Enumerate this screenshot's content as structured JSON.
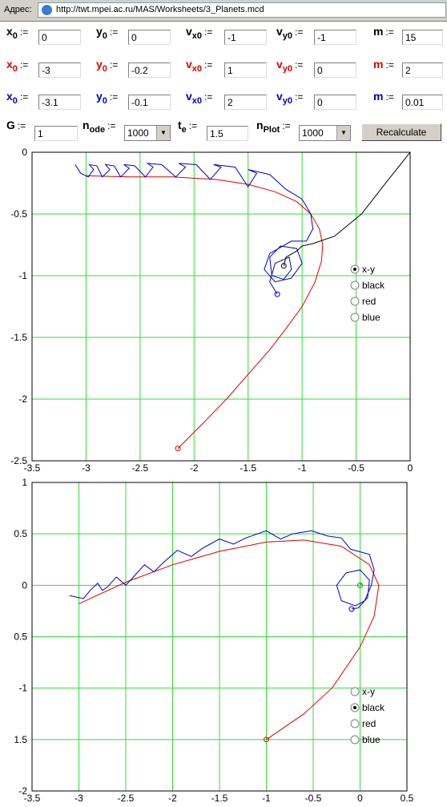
{
  "address_bar": {
    "label": "Адрес:",
    "url": "http://twt.mpei.ac.ru/MAS/Worksheets/3_Planets.mcd"
  },
  "form": {
    "assign": ":=",
    "rows": [
      {
        "color": "#000000",
        "fields": [
          {
            "name": "x",
            "sub": "0",
            "value": "0"
          },
          {
            "name": "y",
            "sub": "0",
            "value": "0"
          },
          {
            "name": "v",
            "sub": "x0",
            "value": "-1"
          },
          {
            "name": "v",
            "sub": "y0",
            "value": "-1"
          },
          {
            "name": "m",
            "value": "15"
          }
        ]
      },
      {
        "color": "#e00000",
        "fields": [
          {
            "name": "x",
            "sub": "0",
            "value": "-3"
          },
          {
            "name": "y",
            "sub": "0",
            "value": "-0.2"
          },
          {
            "name": "v",
            "sub": "x0",
            "value": "1"
          },
          {
            "name": "v",
            "sub": "y0",
            "value": "0"
          },
          {
            "name": "m",
            "value": "2"
          }
        ]
      },
      {
        "color": "#0000c0",
        "fields": [
          {
            "name": "x",
            "sub": "0",
            "value": "-3.1"
          },
          {
            "name": "y",
            "sub": "0",
            "value": "-0.1"
          },
          {
            "name": "v",
            "sub": "x0",
            "value": "2"
          },
          {
            "name": "v",
            "sub": "y0",
            "value": "0"
          },
          {
            "name": "m",
            "value": "0.01"
          }
        ]
      }
    ],
    "settings": [
      {
        "name": "G",
        "value": "1",
        "kind": "input"
      },
      {
        "name": "n",
        "sub": "ode",
        "value": "1000",
        "kind": "select"
      },
      {
        "name": "t",
        "sub": "e",
        "value": "1.5",
        "kind": "input"
      },
      {
        "name": "n",
        "sub": "Plot",
        "value": "1000",
        "kind": "select"
      }
    ],
    "button": "Recalculate"
  },
  "chart_data": [
    {
      "type": "line",
      "grid": true,
      "grid_color": "#33dd33",
      "xlim": [
        -3.5,
        0
      ],
      "xticks": [
        -3.5,
        -3,
        -2.5,
        -2,
        -1.5,
        -1,
        -0.5,
        0
      ],
      "ylim": [
        -2.5,
        0
      ],
      "yticks": [
        0,
        -0.5,
        -1,
        -1.5,
        -2,
        -2.5
      ],
      "series": [
        {
          "color": "#e00000",
          "x": [
            -3.0,
            -2.6,
            -2.2,
            -1.8,
            -1.5,
            -1.25,
            -1.05,
            -0.92,
            -0.84,
            -0.81,
            -0.82,
            -0.88,
            -1.0,
            -1.15,
            -1.3,
            -1.5,
            -1.7,
            -1.9,
            -2.15
          ],
          "values": [
            -0.19,
            -0.2,
            -0.2,
            -0.22,
            -0.26,
            -0.32,
            -0.4,
            -0.5,
            -0.62,
            -0.75,
            -0.88,
            -1.05,
            -1.25,
            -1.43,
            -1.6,
            -1.8,
            -2.0,
            -2.18,
            -2.4
          ]
        },
        {
          "color": "#0000c0",
          "x": [
            -3.1,
            -3.05,
            -2.98,
            -2.93,
            -2.97,
            -2.9,
            -2.85,
            -2.78,
            -2.82,
            -2.74,
            -2.68,
            -2.6,
            -2.65,
            -2.55,
            -2.45,
            -2.38,
            -2.43,
            -2.3,
            -2.17,
            -2.08,
            -2.14,
            -1.98,
            -1.85,
            -1.75,
            -1.82,
            -1.62,
            -1.5,
            -1.42,
            -1.5,
            -1.3,
            -1.15,
            -1.0,
            -0.92,
            -0.9,
            -0.96,
            -1.1,
            -1.3,
            -1.35,
            -1.25,
            -1.1,
            -1.0,
            -1.05,
            -1.2,
            -1.3,
            -1.28,
            -1.17,
            -1.1,
            -1.12,
            -1.25,
            -1.3,
            -1.23
          ],
          "values": [
            -0.1,
            -0.17,
            -0.2,
            -0.14,
            -0.1,
            -0.11,
            -0.2,
            -0.14,
            -0.1,
            -0.11,
            -0.2,
            -0.13,
            -0.1,
            -0.11,
            -0.2,
            -0.12,
            -0.09,
            -0.1,
            -0.2,
            -0.12,
            -0.09,
            -0.1,
            -0.22,
            -0.12,
            -0.1,
            -0.12,
            -0.28,
            -0.17,
            -0.14,
            -0.18,
            -0.3,
            -0.38,
            -0.5,
            -0.62,
            -0.72,
            -0.72,
            -0.82,
            -0.95,
            -1.05,
            -1.02,
            -0.9,
            -0.78,
            -0.76,
            -0.85,
            -1.0,
            -1.03,
            -0.95,
            -0.85,
            -0.9,
            -1.05,
            -1.15
          ]
        },
        {
          "color": "#000000",
          "x": [
            0,
            -0.2,
            -0.45,
            -0.7,
            -0.9,
            -1.0,
            -1.05,
            -1.15,
            -1.17
          ],
          "values": [
            0,
            -0.22,
            -0.5,
            -0.68,
            -0.74,
            -0.76,
            -0.8,
            -0.85,
            -0.92
          ]
        }
      ],
      "radio": {
        "options": [
          "x-y",
          "black",
          "red",
          "blue"
        ],
        "selected": 0
      }
    },
    {
      "type": "line",
      "grid": true,
      "grid_color": "#33dd33",
      "xlim": [
        -3.5,
        0.5
      ],
      "xticks": [
        -3.5,
        -3,
        -2.5,
        -2,
        -1.5,
        -1,
        -0.5,
        0,
        0.5
      ],
      "ylim": [
        -2,
        1
      ],
      "yticks": [
        1,
        0.5,
        0,
        {
          "value": -0.5,
          "label": "0.5"
        },
        -1,
        {
          "value": -1.5,
          "label": "1.5"
        },
        -2
      ],
      "series": [
        {
          "color": "#e00000",
          "x": [
            -3.0,
            -2.5,
            -2.0,
            -1.5,
            -1.0,
            -0.6,
            -0.2,
            0.1,
            0.2,
            0.15,
            0.0,
            -0.3,
            -0.6,
            -1.0
          ],
          "values": [
            -0.18,
            0.03,
            0.2,
            0.33,
            0.42,
            0.44,
            0.38,
            0.2,
            0.0,
            -0.3,
            -0.6,
            -1.0,
            -1.25,
            -1.5
          ]
        },
        {
          "color": "#0000c0",
          "x": [
            -3.1,
            -2.95,
            -2.88,
            -2.8,
            -2.75,
            -2.7,
            -2.6,
            -2.5,
            -2.42,
            -2.3,
            -2.2,
            -2.1,
            -1.95,
            -1.8,
            -1.68,
            -1.5,
            -1.35,
            -1.22,
            -1.0,
            -0.85,
            -0.72,
            -0.52,
            -0.35,
            -0.2,
            -0.1,
            0.1,
            0.15,
            0.12,
            0.05,
            -0.05,
            -0.2,
            -0.25,
            -0.15,
            0.0,
            0.1,
            0.08,
            -0.02,
            -0.09
          ],
          "values": [
            -0.1,
            -0.13,
            -0.05,
            0.02,
            -0.05,
            -0.02,
            0.08,
            0.0,
            0.08,
            0.2,
            0.13,
            0.22,
            0.34,
            0.28,
            0.36,
            0.45,
            0.4,
            0.46,
            0.53,
            0.45,
            0.5,
            0.53,
            0.48,
            0.46,
            0.35,
            0.3,
            0.15,
            0.0,
            -0.15,
            -0.2,
            -0.15,
            0.0,
            0.12,
            0.15,
            0.05,
            -0.12,
            -0.22,
            -0.23
          ]
        },
        {
          "color": "#009900",
          "x": [
            0.02,
            0
          ],
          "values": [
            0.02,
            0
          ]
        }
      ],
      "radio": {
        "options": [
          "x-y",
          "black",
          "red",
          "blue"
        ],
        "selected": 1
      }
    }
  ]
}
